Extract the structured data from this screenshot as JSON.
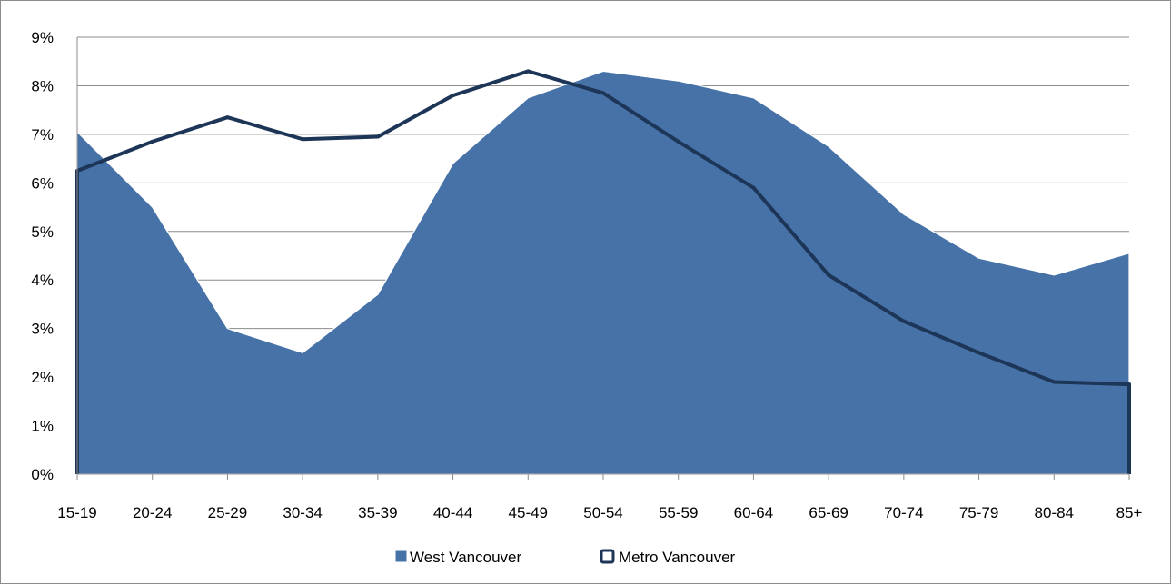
{
  "chart_data": {
    "type": "area",
    "title": "",
    "xlabel": "",
    "ylabel": "",
    "categories": [
      "15-19",
      "20-24",
      "25-29",
      "30-34",
      "35-39",
      "40-44",
      "45-49",
      "50-54",
      "55-59",
      "60-64",
      "65-69",
      "70-74",
      "75-79",
      "80-84",
      "85+"
    ],
    "y_ticks": [
      "0%",
      "1%",
      "2%",
      "3%",
      "4%",
      "5%",
      "6%",
      "7%",
      "8%",
      "9%"
    ],
    "ylim": [
      0,
      9
    ],
    "grid": true,
    "legend_position": "bottom",
    "series": [
      {
        "name": "West Vancouver",
        "type": "area",
        "color": "#4672a8",
        "values": [
          7.05,
          5.5,
          3.0,
          2.5,
          3.7,
          6.4,
          7.75,
          8.3,
          8.1,
          7.75,
          6.75,
          5.35,
          4.45,
          4.1,
          4.55
        ]
      },
      {
        "name": "Metro Vancouver",
        "type": "line",
        "color": "#1d3557",
        "values": [
          6.25,
          6.85,
          7.35,
          6.9,
          6.95,
          7.8,
          8.3,
          7.85,
          6.85,
          5.9,
          4.1,
          3.15,
          2.5,
          1.9,
          1.85
        ]
      }
    ]
  }
}
